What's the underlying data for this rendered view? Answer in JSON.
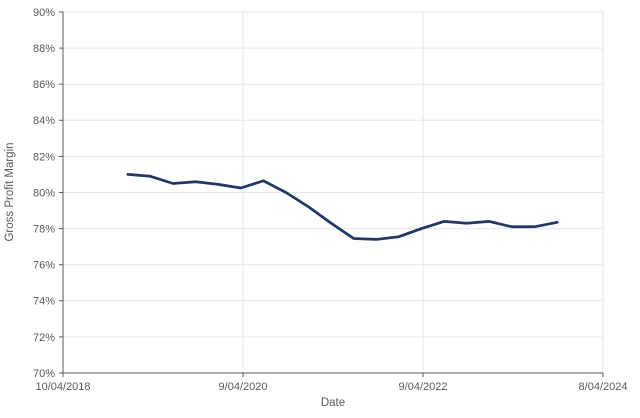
{
  "chart_data": {
    "type": "line",
    "title": "",
    "xlabel": "Date",
    "ylabel": "Gross Profit Margin",
    "ylim": [
      70,
      90
    ],
    "ytick_step": 2,
    "ytick_labels": [
      "70%",
      "72%",
      "74%",
      "76%",
      "78%",
      "80%",
      "82%",
      "84%",
      "86%",
      "88%",
      "90%"
    ],
    "xtick_labels": [
      "10/04/2018",
      "9/04/2020",
      "9/04/2022",
      "8/04/2024"
    ],
    "grid": true,
    "legend_position": "none",
    "colors": {
      "line": "#1f3864",
      "grid": "#e6e6e6",
      "axis": "#595959",
      "text": "#595959",
      "background": "#ffffff"
    },
    "series": [
      {
        "name": "Gross Profit Margin",
        "x_estimated_dates": [
          "7/04/2019",
          "10/04/2019",
          "1/04/2020",
          "4/04/2020",
          "7/04/2020",
          "10/04/2020",
          "1/04/2021",
          "4/04/2021",
          "7/04/2021",
          "10/04/2021",
          "1/04/2022",
          "4/04/2022",
          "7/04/2022",
          "10/04/2022",
          "1/04/2023",
          "4/04/2023",
          "7/04/2023",
          "10/04/2023",
          "1/04/2024",
          "4/04/2024"
        ],
        "values": [
          81.0,
          80.9,
          80.5,
          80.6,
          80.45,
          80.25,
          80.65,
          80.0,
          79.2,
          78.3,
          77.45,
          77.4,
          77.55,
          78.0,
          78.4,
          78.3,
          78.4,
          78.1,
          78.1,
          78.35
        ]
      }
    ]
  }
}
